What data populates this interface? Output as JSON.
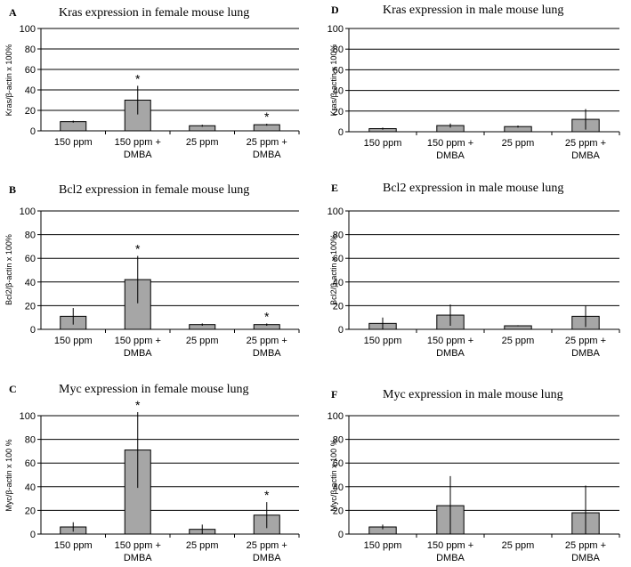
{
  "chart_data": [
    {
      "type": "bar",
      "panel": "A",
      "title": "Kras expression in female mouse lung",
      "ylabel": "Kras/β-actin x 100%",
      "ylim": [
        0,
        100
      ],
      "yticks": [
        "0",
        "20",
        "40",
        "60",
        "80",
        "100"
      ],
      "categories": [
        [
          "150 ppm"
        ],
        [
          "150 ppm +",
          "DMBA"
        ],
        [
          "25 ppm"
        ],
        [
          "25 ppm +",
          "DMBA"
        ]
      ],
      "values": [
        9,
        30,
        5,
        6
      ],
      "errors": [
        1,
        14,
        1,
        1
      ],
      "significant": [
        false,
        true,
        false,
        true
      ],
      "marker": "*"
    },
    {
      "type": "bar",
      "panel": "D",
      "title": "Kras expression in male mouse lung",
      "ylabel": "Kras/β-actin x 100%",
      "ylim": [
        0,
        100
      ],
      "yticks": [
        "0",
        "20",
        "40",
        "60",
        "80",
        "100"
      ],
      "categories": [
        [
          "150 ppm"
        ],
        [
          "150 ppm +",
          "DMBA"
        ],
        [
          "25 ppm"
        ],
        [
          "25 ppm +",
          "DMBA"
        ]
      ],
      "values": [
        3,
        6,
        5,
        12
      ],
      "errors": [
        1,
        2,
        1,
        10
      ],
      "significant": [
        false,
        false,
        false,
        false
      ],
      "marker": "*"
    },
    {
      "type": "bar",
      "panel": "B",
      "title": "Bcl2 expression in female mouse lung",
      "ylabel": "Bcl2/β-actin x 100%",
      "ylim": [
        0,
        100
      ],
      "yticks": [
        "0",
        "20",
        "40",
        "60",
        "80",
        "100"
      ],
      "categories": [
        [
          "150 ppm"
        ],
        [
          "150 ppm +",
          "DMBA"
        ],
        [
          "25 ppm"
        ],
        [
          "25 ppm +",
          "DMBA"
        ]
      ],
      "values": [
        11,
        42,
        4,
        4
      ],
      "errors": [
        7,
        20,
        1,
        1
      ],
      "significant": [
        false,
        true,
        false,
        true
      ],
      "marker": "*"
    },
    {
      "type": "bar",
      "panel": "E",
      "title": "Bcl2 expression in male mouse lung",
      "ylabel": "Bcl2/β-actin x 100%",
      "ylim": [
        0,
        100
      ],
      "yticks": [
        "0",
        "20",
        "40",
        "60",
        "80",
        "100"
      ],
      "categories": [
        [
          "150 ppm"
        ],
        [
          "150 ppm +",
          "DMBA"
        ],
        [
          "25 ppm"
        ],
        [
          "25 ppm +",
          "DMBA"
        ]
      ],
      "values": [
        5,
        12,
        3,
        11
      ],
      "errors": [
        5,
        9,
        0.5,
        9
      ],
      "significant": [
        false,
        false,
        false,
        false
      ],
      "marker": "*"
    },
    {
      "type": "bar",
      "panel": "C",
      "title": "Myc expression in female mouse lung",
      "ylabel": "Myc/β-actin x 100 %",
      "ylim": [
        0,
        100
      ],
      "yticks": [
        "0",
        "20",
        "40",
        "60",
        "80",
        "100"
      ],
      "categories": [
        [
          "150 ppm"
        ],
        [
          "150 ppm +",
          "DMBA"
        ],
        [
          "25 ppm"
        ],
        [
          "25 ppm +",
          "DMBA"
        ]
      ],
      "values": [
        6,
        71,
        4,
        16
      ],
      "errors": [
        4,
        32,
        4,
        11
      ],
      "significant": [
        false,
        true,
        false,
        true
      ],
      "marker": "*"
    },
    {
      "type": "bar",
      "panel": "F",
      "title": "Myc expression in male mouse lung",
      "ylabel": "Myc/β-actin x 100 %",
      "ylim": [
        0,
        100
      ],
      "yticks": [
        "0",
        "20",
        "40",
        "60",
        "80",
        "100"
      ],
      "categories": [
        [
          "150 ppm"
        ],
        [
          "150 ppm +",
          "DMBA"
        ],
        [
          "25 ppm"
        ],
        [
          "25 ppm +",
          "DMBA"
        ]
      ],
      "values": [
        6,
        24,
        0,
        18
      ],
      "errors": [
        2,
        25,
        0,
        23
      ],
      "significant": [
        false,
        false,
        false,
        false
      ],
      "marker": "*"
    }
  ]
}
